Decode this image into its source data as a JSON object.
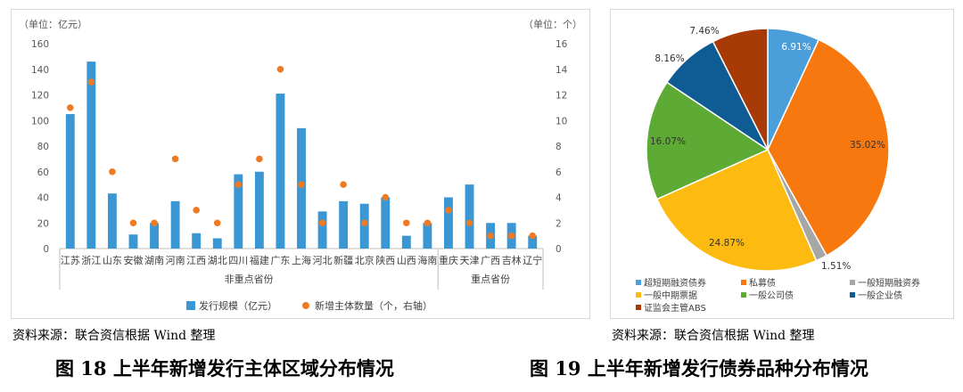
{
  "chart_data": [
    {
      "type": "bar",
      "left_unit_label": "（单位：亿元）",
      "right_unit_label": "（单位：个）",
      "categories": [
        "江苏",
        "浙江",
        "山东",
        "安徽",
        "湖南",
        "河南",
        "江西",
        "湖北",
        "四川",
        "福建",
        "广东",
        "上海",
        "河北",
        "新疆",
        "北京",
        "陕西",
        "山西",
        "海南",
        "重庆",
        "天津",
        "广西",
        "吉林",
        "辽宁"
      ],
      "group_labels": [
        {
          "label": "非重点省份",
          "from": 0,
          "to": 17
        },
        {
          "label": "重点省份",
          "from": 18,
          "to": 22
        }
      ],
      "series": [
        {
          "name": "发行规模（亿元）",
          "type": "bar",
          "axis": "left",
          "color": "#3B97D3",
          "values": [
            105,
            146,
            43,
            11,
            20,
            37,
            12,
            8,
            58,
            60,
            121,
            94,
            29,
            37,
            35,
            40,
            10,
            20,
            40,
            50,
            20,
            20,
            10
          ]
        },
        {
          "name": "新增主体数量（个，右轴）",
          "type": "scatter",
          "axis": "right",
          "color": "#F07A22",
          "values": [
            11,
            13,
            6,
            2,
            2,
            7,
            3,
            2,
            5,
            7,
            14,
            5,
            2,
            5,
            2,
            4,
            2,
            2,
            3,
            2,
            1,
            1,
            1
          ]
        }
      ],
      "left_ticks": [
        0,
        20,
        40,
        60,
        80,
        100,
        120,
        140,
        160
      ],
      "right_ticks": [
        0,
        2,
        4,
        6,
        8,
        10,
        12,
        14,
        16
      ],
      "ylim_left": [
        0,
        160
      ],
      "ylim_right": [
        0,
        16
      ],
      "legend_position": "bottom"
    },
    {
      "type": "pie",
      "slices": [
        {
          "label": "超短期融资债券",
          "value": 6.91,
          "text": "6.91%",
          "color": "#4A9FDB"
        },
        {
          "label": "私募债",
          "value": 35.02,
          "text": "35.02%",
          "color": "#F7780F"
        },
        {
          "label": "一般短期融资券",
          "value": 1.51,
          "text": "1.51%",
          "color": "#A6A6A6"
        },
        {
          "label": "一般中期票据",
          "value": 24.87,
          "text": "24.87%",
          "color": "#FDBA10"
        },
        {
          "label": "一般公司债",
          "value": 16.07,
          "text": "16.07%",
          "color": "#5DAA35"
        },
        {
          "label": "一般企业债",
          "value": 8.16,
          "text": "8.16%",
          "color": "#0E5C93"
        },
        {
          "label": "证监会主管ABS",
          "value": 7.46,
          "text": "7.46%",
          "color": "#A83A06"
        }
      ],
      "legend_position": "bottom"
    }
  ],
  "left_source": "资料来源：联合资信根据 Wind 整理",
  "right_source": "资料来源：联合资信根据 Wind 整理",
  "left_caption": "图 18 上半年新增发行主体区域分布情况",
  "right_caption": "图 19 上半年新增发行债券品种分布情况"
}
